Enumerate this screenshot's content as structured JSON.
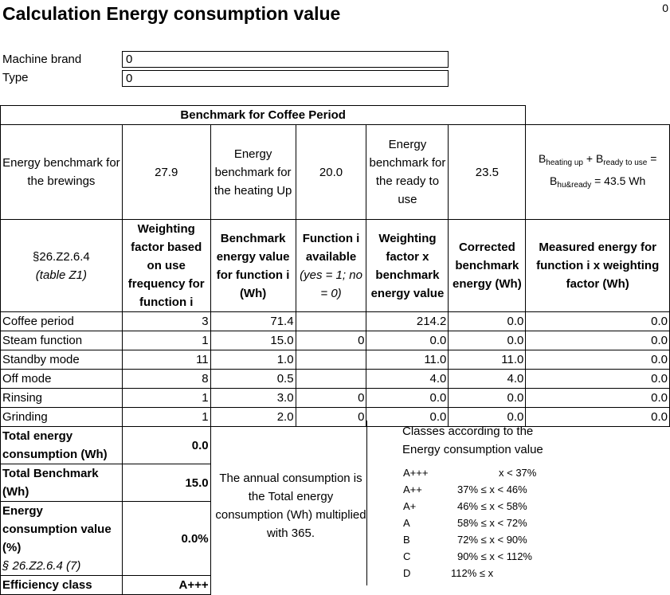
{
  "title": "Calculation Energy consumption value",
  "corner_value": "0",
  "machine": {
    "brand_label": "Machine brand",
    "brand_value": "0",
    "type_label": "Type",
    "type_value": "0"
  },
  "benchmark": {
    "header": "Benchmark for Coffee Period",
    "brew_label": "Energy benchmark for the brewings",
    "brew_value": "27.9",
    "heat_label": "Energy benchmark for the heating Up",
    "heat_value": "20.0",
    "ready_label": "Energy benchmark for the ready to use",
    "ready_value": "23.5",
    "formula_line1_b": "B",
    "formula_line1_sub1": "heating up",
    "formula_line1_plus": " + B",
    "formula_line1_sub2": "ready to use",
    "formula_line1_eq": " =",
    "formula_line2_b": "B",
    "formula_line2_sub": "hu&ready",
    "formula_line2_rest": " = 43.5 Wh"
  },
  "columns": {
    "ref": "§26.Z2.6.4",
    "ref_sub": "(table Z1)",
    "weight": "Weighting factor based on use frequency for function i",
    "bench": "Benchmark energy value for function i (Wh)",
    "avail": "Function i available",
    "avail_sub": "(yes = 1; no = 0)",
    "wxb": "Weighting factor x benchmark energy value",
    "corrected": "Corrected benchmark energy (Wh)",
    "measured": "Measured energy for function i x weighting factor (Wh)"
  },
  "rows": [
    {
      "name": "Coffee period",
      "weight": "3",
      "bench": "71.4",
      "avail": "",
      "wxb": "214.2",
      "corr": "0.0",
      "meas": "0.0"
    },
    {
      "name": "Steam function",
      "weight": "1",
      "bench": "15.0",
      "avail": "0",
      "wxb": "0.0",
      "corr": "0.0",
      "meas": "0.0"
    },
    {
      "name": "Standby mode",
      "weight": "11",
      "bench": "1.0",
      "avail": "",
      "wxb": "11.0",
      "corr": "11.0",
      "meas": "0.0"
    },
    {
      "name": "Off mode",
      "weight": "8",
      "bench": "0.5",
      "avail": "",
      "wxb": "4.0",
      "corr": "4.0",
      "meas": "0.0"
    },
    {
      "name": "Rinsing",
      "weight": "1",
      "bench": "3.0",
      "avail": "0",
      "wxb": "0.0",
      "corr": "0.0",
      "meas": "0.0"
    },
    {
      "name": "Grinding",
      "weight": "1",
      "bench": "2.0",
      "avail": "0",
      "wxb": "0.0",
      "corr": "0.0",
      "meas": "0.0"
    }
  ],
  "summary": {
    "total_label": "Total energy consumption (Wh)",
    "total_value": "0.0",
    "bench_label": "Total Benchmark (Wh)",
    "bench_value": "15.0",
    "ecv_label": "Energy consumption value (%)",
    "ecv_ref": "§ 26.Z2.6.4 (7)",
    "ecv_value": "0.0%",
    "eff_label": "Efficiency class",
    "eff_value": "A+++",
    "annual_note": "The annual consumption is the Total energy consumption (Wh) multiplied with 365."
  },
  "classes": {
    "header": "Classes according to the Energy consumption value",
    "items": [
      {
        "cls": "A+++",
        "range": "x < 37%"
      },
      {
        "cls": "A++",
        "range": "37% ≤ x < 46%"
      },
      {
        "cls": "A+",
        "range": "46% ≤ x < 58%"
      },
      {
        "cls": "A",
        "range": "58% ≤ x < 72%"
      },
      {
        "cls": "B",
        "range": "72% ≤ x < 90%"
      },
      {
        "cls": "C",
        "range": "90% ≤ x < 112%"
      },
      {
        "cls": "D",
        "range": "112% ≤ x"
      }
    ]
  }
}
